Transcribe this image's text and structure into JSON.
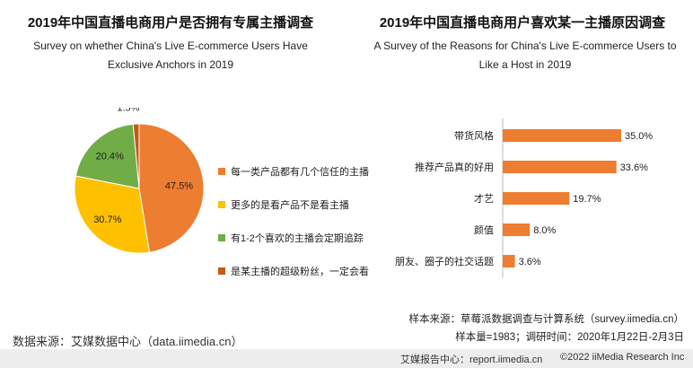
{
  "left": {
    "title": "2019年中国直播电商用户是否拥有专属主播调查",
    "subtitle": "Survey on whether China's Live E-commerce Users Have Exclusive Anchors in 2019"
  },
  "right": {
    "title": "2019年中国直播电商用户喜欢某一主播原因调查",
    "subtitle": "A Survey of the Reasons for China's Live E-commerce Users to Like a Host in 2019"
  },
  "colors": {
    "orange": "#ED7D31",
    "yellow": "#FFC000",
    "green": "#70AD47",
    "brown": "#C55A11"
  },
  "chart_data": [
    {
      "type": "pie",
      "title": "2019年中国直播电商用户是否拥有专属主播调查",
      "slices": [
        {
          "label": "每一类产品都有几个信任的主播",
          "value": 47.5,
          "display": "47.5%",
          "color": "#ED7D31"
        },
        {
          "label": "更多的是看产品不是看主播",
          "value": 30.7,
          "display": "30.7%",
          "color": "#FFC000"
        },
        {
          "label": "有1-2个喜欢的主播会定期追踪",
          "value": 20.4,
          "display": "20.4%",
          "color": "#70AD47"
        },
        {
          "label": "是某主播的超级粉丝，一定会看",
          "value": 1.5,
          "display": "1.5%",
          "color": "#C55A11"
        }
      ]
    },
    {
      "type": "bar",
      "orientation": "horizontal",
      "title": "2019年中国直播电商用户喜欢某一主播原因调查",
      "categories": [
        "带货风格",
        "推荐产品真的好用",
        "才艺",
        "颜值",
        "朋友、圈子的社交话题"
      ],
      "values": [
        35.0,
        33.6,
        19.7,
        8.0,
        3.6
      ],
      "labels": [
        "35.0%",
        "33.6%",
        "19.7%",
        "8.0%",
        "3.6%"
      ],
      "xlim": [
        0,
        35
      ],
      "color": "#ED7D31"
    }
  ],
  "notes": {
    "sample_source": "样本来源：草莓派数据调查与计算系统（survey.iimedia.cn）",
    "sample_size": "样本量=1983；调研时间：2020年1月22日-2月3日",
    "data_source": "数据来源：艾媒数据中心（data.iimedia.cn）"
  },
  "footer": {
    "report_center": "艾媒报告中心：report.iimedia.cn",
    "copyright": "©2022  iiMedia Research Inc"
  }
}
